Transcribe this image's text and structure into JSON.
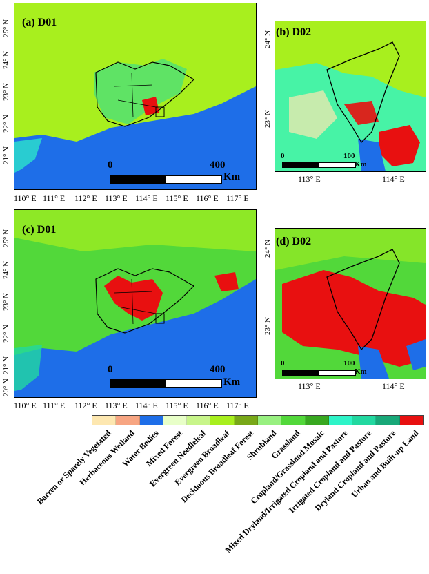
{
  "panels": [
    {
      "id": "a",
      "label": "(a) D01",
      "scalebar": {
        "start": "0",
        "end": "400",
        "unit": "Km"
      }
    },
    {
      "id": "b",
      "label": "(b) D02",
      "scalebar": {
        "start": "0",
        "end": "100",
        "unit": "Km"
      }
    },
    {
      "id": "c",
      "label": "(c) D01",
      "scalebar": {
        "start": "0",
        "end": "400",
        "unit": "Km"
      }
    },
    {
      "id": "d",
      "label": "(d) D02",
      "scalebar": {
        "start": "0",
        "end": "100",
        "unit": "Km"
      }
    }
  ],
  "d01_lon_ticks": [
    "110° E",
    "111° E",
    "112° E",
    "113° E",
    "114° E",
    "115° E",
    "116° E",
    "117° E"
  ],
  "d01_lat_ticks_top": [
    "21° N",
    "22° N",
    "23° N",
    "24° N",
    "25° N"
  ],
  "d01_lat_ticks_bottom": [
    "20° N",
    "21° N",
    "22° N",
    "23° N",
    "24° N",
    "25° N"
  ],
  "d02_lon_ticks": [
    "113° E",
    "114° E"
  ],
  "d02_lat_ticks": [
    "23° N",
    "24° N"
  ],
  "legend": [
    {
      "label": "Barren or Sparely Vegetated",
      "color": "#fde7b0"
    },
    {
      "label": "Herbaceous Wetland",
      "color": "#f7a582"
    },
    {
      "label": "Water Bodies",
      "color": "#1e6ee8"
    },
    {
      "label": "Mixed Forest",
      "color": "#e8ffc8"
    },
    {
      "label": "Evergreen Needleleaf",
      "color": "#c8f58a"
    },
    {
      "label": "Evergreen Broadleaf",
      "color": "#a8ef1e"
    },
    {
      "label": "Deciduous Broadleaf Forest",
      "color": "#78a818"
    },
    {
      "label": "Shrubland",
      "color": "#98f080"
    },
    {
      "label": "Grassland",
      "color": "#52d83a"
    },
    {
      "label": "Cropland/Grassland Mosaic",
      "color": "#38a820"
    },
    {
      "label": "Mixed Dryland/Irrigated Cropland and Pasture",
      "color": "#2ef4c8"
    },
    {
      "label": "Irrigated Cropland and Pasture",
      "color": "#22d8a0"
    },
    {
      "label": "Dryland Cropland and Pasture",
      "color": "#18a878"
    },
    {
      "label": "Urban and Built-up Land",
      "color": "#e81010"
    }
  ]
}
